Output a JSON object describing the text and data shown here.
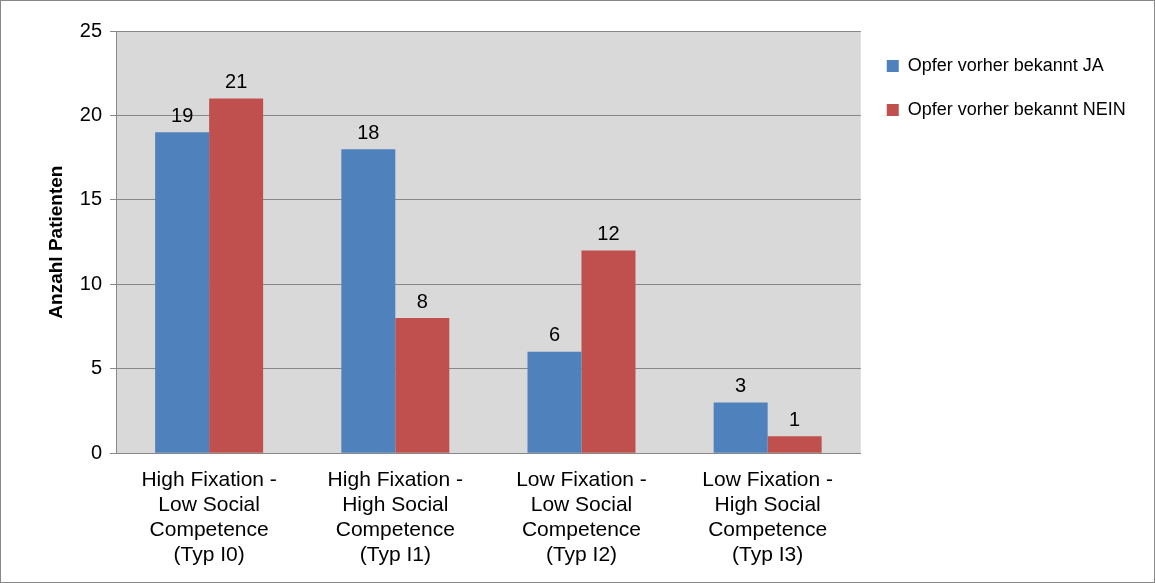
{
  "chart_data": {
    "type": "bar",
    "ylabel": "Anzahl Patienten",
    "categories": [
      "High Fixation -\nLow Social\nCompetence\n(Typ I0)",
      "High Fixation -\nHigh Social\nCompetence\n(Typ I1)",
      "Low Fixation -\nLow Social\nCompetence\n(Typ I2)",
      "Low Fixation -\nHigh Social\nCompetence\n(Typ I3)"
    ],
    "series": [
      {
        "name": "Opfer vorher bekannt JA",
        "color": "#4f81bd",
        "values": [
          19,
          18,
          6,
          3
        ]
      },
      {
        "name": "Opfer vorher bekannt NEIN",
        "color": "#c0504d",
        "values": [
          21,
          8,
          12,
          1
        ]
      }
    ],
    "ylim": [
      0,
      25
    ],
    "yticks": [
      0,
      5,
      10,
      15,
      20,
      25
    ],
    "grid": "y",
    "legend": "right",
    "data_labels": true
  }
}
